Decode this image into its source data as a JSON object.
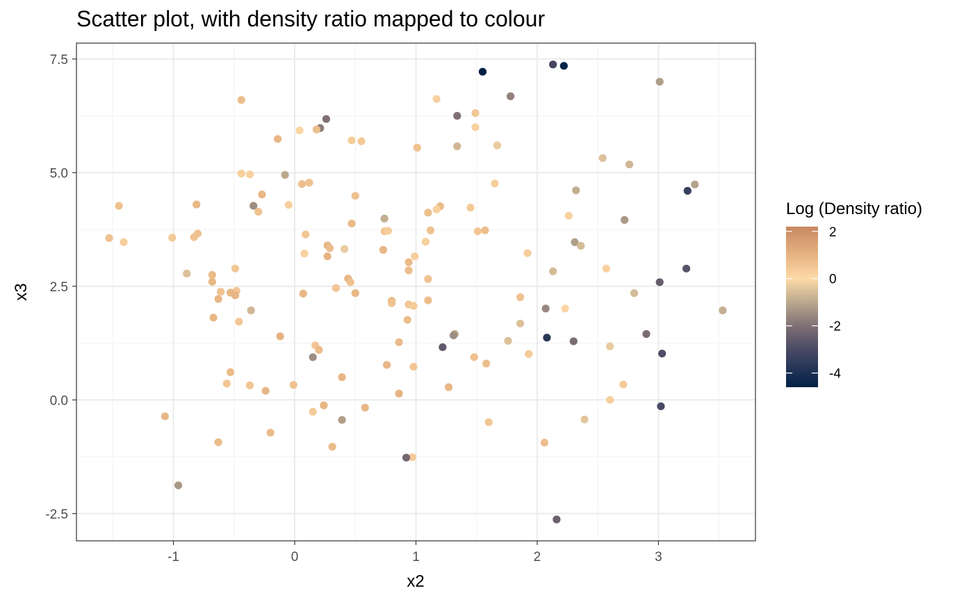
{
  "chart_data": {
    "type": "scatter",
    "title": "Scatter plot, with density ratio mapped to colour",
    "xlabel": "x2",
    "ylabel": "x3",
    "xlim": [
      -1.8,
      3.8
    ],
    "ylim": [
      -3.1,
      7.85
    ],
    "x_ticks": [
      -1,
      0,
      1,
      2,
      3
    ],
    "x_tick_labels": [
      "-1",
      "0",
      "1",
      "2",
      "3"
    ],
    "y_ticks": [
      -2.5,
      0,
      2.5,
      5,
      7.5
    ],
    "y_tick_labels": [
      "-2.5",
      "0.0",
      "2.5",
      "5.0",
      "7.5"
    ],
    "grid": true,
    "legend": {
      "title": "Log (Density ratio)",
      "placement": "right",
      "range": [
        -4.6,
        2.2
      ],
      "ticks": [
        2,
        0,
        -2,
        -4
      ],
      "tick_labels": [
        "2",
        "0",
        "-2",
        "-4"
      ],
      "gradient": [
        {
          "value": -4.6,
          "color": "#002147"
        },
        {
          "value": -3.0,
          "color": "#4a4a66"
        },
        {
          "value": -2.0,
          "color": "#807074"
        },
        {
          "value": -1.0,
          "color": "#bba98e"
        },
        {
          "value": 0.0,
          "color": "#fdd9a6"
        },
        {
          "value": 1.0,
          "color": "#e6b382"
        },
        {
          "value": 2.2,
          "color": "#c88860"
        }
      ]
    },
    "points": [
      {
        "x": 1.55,
        "y": 7.22,
        "c": -4.6
      },
      {
        "x": 2.13,
        "y": 7.38,
        "c": -3.1
      },
      {
        "x": 2.22,
        "y": 7.35,
        "c": -4.5
      },
      {
        "x": 3.01,
        "y": 7.0,
        "c": -1.2
      },
      {
        "x": 1.78,
        "y": 6.68,
        "c": -1.7
      },
      {
        "x": -0.44,
        "y": 6.6,
        "c": 0.7
      },
      {
        "x": 1.17,
        "y": 6.62,
        "c": 0.2
      },
      {
        "x": 1.49,
        "y": 6.31,
        "c": 0.5
      },
      {
        "x": 1.34,
        "y": 6.25,
        "c": -2.0
      },
      {
        "x": 0.26,
        "y": 6.18,
        "c": -2.0
      },
      {
        "x": 0.21,
        "y": 5.98,
        "c": -1.8
      },
      {
        "x": 0.04,
        "y": 5.93,
        "c": 0.1
      },
      {
        "x": 0.18,
        "y": 5.95,
        "c": 0.7
      },
      {
        "x": 1.49,
        "y": 6.0,
        "c": 0.2
      },
      {
        "x": -0.14,
        "y": 5.74,
        "c": 0.9
      },
      {
        "x": 0.47,
        "y": 5.71,
        "c": 0.3
      },
      {
        "x": 0.55,
        "y": 5.69,
        "c": 0.4
      },
      {
        "x": 1.67,
        "y": 5.6,
        "c": -0.3
      },
      {
        "x": 1.34,
        "y": 5.58,
        "c": -0.7
      },
      {
        "x": 1.01,
        "y": 5.55,
        "c": 0.6
      },
      {
        "x": 2.54,
        "y": 5.32,
        "c": -0.5
      },
      {
        "x": 2.76,
        "y": 5.18,
        "c": -0.7
      },
      {
        "x": -0.44,
        "y": 4.98,
        "c": 0.3
      },
      {
        "x": -0.37,
        "y": 4.96,
        "c": 0.2
      },
      {
        "x": -0.08,
        "y": 4.95,
        "c": -1.0
      },
      {
        "x": 0.06,
        "y": 4.75,
        "c": 0.7
      },
      {
        "x": 0.12,
        "y": 4.78,
        "c": 0.6
      },
      {
        "x": 1.65,
        "y": 4.76,
        "c": 0.3
      },
      {
        "x": 3.3,
        "y": 4.74,
        "c": -1.1
      },
      {
        "x": 2.32,
        "y": 4.61,
        "c": -0.9
      },
      {
        "x": 3.24,
        "y": 4.6,
        "c": -3.4
      },
      {
        "x": -0.27,
        "y": 4.52,
        "c": 0.9
      },
      {
        "x": 0.5,
        "y": 4.49,
        "c": 0.6
      },
      {
        "x": -1.45,
        "y": 4.27,
        "c": 0.6
      },
      {
        "x": -0.81,
        "y": 4.3,
        "c": 0.9
      },
      {
        "x": -0.05,
        "y": 4.29,
        "c": 0.2
      },
      {
        "x": -0.34,
        "y": 4.27,
        "c": -1.5
      },
      {
        "x": 1.2,
        "y": 4.26,
        "c": 0.8
      },
      {
        "x": 1.45,
        "y": 4.23,
        "c": 0.4
      },
      {
        "x": 1.17,
        "y": 4.19,
        "c": 0.2
      },
      {
        "x": 1.1,
        "y": 4.12,
        "c": 0.7
      },
      {
        "x": -0.3,
        "y": 4.14,
        "c": 0.6
      },
      {
        "x": 2.26,
        "y": 4.05,
        "c": 0.2
      },
      {
        "x": 0.74,
        "y": 3.99,
        "c": -0.9
      },
      {
        "x": 2.72,
        "y": 3.96,
        "c": -1.3
      },
      {
        "x": 0.47,
        "y": 3.88,
        "c": 0.8
      },
      {
        "x": -0.8,
        "y": 3.66,
        "c": 0.6
      },
      {
        "x": 0.09,
        "y": 3.64,
        "c": 0.5
      },
      {
        "x": 0.74,
        "y": 3.71,
        "c": 0.5
      },
      {
        "x": 0.77,
        "y": 3.72,
        "c": 0.3
      },
      {
        "x": 1.12,
        "y": 3.73,
        "c": 0.6
      },
      {
        "x": 1.51,
        "y": 3.71,
        "c": 0.5
      },
      {
        "x": 1.57,
        "y": 3.73,
        "c": 0.7
      },
      {
        "x": -1.53,
        "y": 3.56,
        "c": 0.6
      },
      {
        "x": -1.41,
        "y": 3.47,
        "c": 0.3
      },
      {
        "x": -1.01,
        "y": 3.57,
        "c": 0.4
      },
      {
        "x": -0.83,
        "y": 3.58,
        "c": 0.6
      },
      {
        "x": 2.31,
        "y": 3.47,
        "c": -1.2
      },
      {
        "x": 1.08,
        "y": 3.48,
        "c": 0.2
      },
      {
        "x": 2.36,
        "y": 3.39,
        "c": -0.6
      },
      {
        "x": 0.27,
        "y": 3.4,
        "c": 0.9
      },
      {
        "x": 0.29,
        "y": 3.34,
        "c": 0.7
      },
      {
        "x": 0.41,
        "y": 3.32,
        "c": -0.3
      },
      {
        "x": 0.73,
        "y": 3.3,
        "c": 0.9
      },
      {
        "x": 0.27,
        "y": 3.16,
        "c": 1.0
      },
      {
        "x": 0.99,
        "y": 3.16,
        "c": 0.3
      },
      {
        "x": 0.08,
        "y": 3.22,
        "c": 0.2
      },
      {
        "x": 1.92,
        "y": 3.23,
        "c": 0.3
      },
      {
        "x": 0.94,
        "y": 3.03,
        "c": 0.8
      },
      {
        "x": 2.57,
        "y": 2.89,
        "c": 0.2
      },
      {
        "x": -0.49,
        "y": 2.89,
        "c": 0.5
      },
      {
        "x": 0.94,
        "y": 2.85,
        "c": 0.7
      },
      {
        "x": 2.13,
        "y": 2.83,
        "c": -0.6
      },
      {
        "x": 3.23,
        "y": 2.89,
        "c": -2.8
      },
      {
        "x": -0.89,
        "y": 2.78,
        "c": -0.5
      },
      {
        "x": -0.68,
        "y": 2.75,
        "c": 0.8
      },
      {
        "x": 0.44,
        "y": 2.67,
        "c": 0.9
      },
      {
        "x": 1.1,
        "y": 2.66,
        "c": 0.6
      },
      {
        "x": -0.68,
        "y": 2.6,
        "c": 0.9
      },
      {
        "x": 0.46,
        "y": 2.59,
        "c": 0.6
      },
      {
        "x": 3.01,
        "y": 2.59,
        "c": -2.5
      },
      {
        "x": 0.34,
        "y": 2.46,
        "c": 0.5
      },
      {
        "x": -0.61,
        "y": 2.38,
        "c": 0.6
      },
      {
        "x": -0.48,
        "y": 2.4,
        "c": 0.5
      },
      {
        "x": -0.53,
        "y": 2.36,
        "c": 0.9
      },
      {
        "x": -0.49,
        "y": 2.3,
        "c": 0.9
      },
      {
        "x": 0.07,
        "y": 2.34,
        "c": 0.9
      },
      {
        "x": 0.5,
        "y": 2.35,
        "c": 0.9
      },
      {
        "x": 2.8,
        "y": 2.35,
        "c": -0.6
      },
      {
        "x": 1.86,
        "y": 2.26,
        "c": 0.6
      },
      {
        "x": -0.63,
        "y": 2.22,
        "c": 0.9
      },
      {
        "x": 0.8,
        "y": 2.18,
        "c": 0.8
      },
      {
        "x": 0.8,
        "y": 2.13,
        "c": 0.6
      },
      {
        "x": 0.94,
        "y": 2.1,
        "c": 0.5
      },
      {
        "x": 0.98,
        "y": 2.07,
        "c": 0.4
      },
      {
        "x": 1.1,
        "y": 2.19,
        "c": 0.7
      },
      {
        "x": 2.07,
        "y": 2.01,
        "c": -1.6
      },
      {
        "x": 2.23,
        "y": 2.01,
        "c": 0.1
      },
      {
        "x": -0.36,
        "y": 1.97,
        "c": -0.7
      },
      {
        "x": 3.53,
        "y": 1.97,
        "c": -0.9
      },
      {
        "x": -0.67,
        "y": 1.81,
        "c": 0.9
      },
      {
        "x": 0.93,
        "y": 1.76,
        "c": 0.7
      },
      {
        "x": -0.46,
        "y": 1.72,
        "c": 0.5
      },
      {
        "x": 1.86,
        "y": 1.68,
        "c": -0.5
      },
      {
        "x": 1.32,
        "y": 1.45,
        "c": -1.0
      },
      {
        "x": 1.31,
        "y": 1.42,
        "c": -1.5
      },
      {
        "x": 2.9,
        "y": 1.45,
        "c": -2.1
      },
      {
        "x": -0.12,
        "y": 1.4,
        "c": 1.0
      },
      {
        "x": 2.08,
        "y": 1.37,
        "c": -3.7
      },
      {
        "x": 1.76,
        "y": 1.3,
        "c": -0.5
      },
      {
        "x": 2.3,
        "y": 1.29,
        "c": -2.1
      },
      {
        "x": 0.86,
        "y": 1.27,
        "c": 0.8
      },
      {
        "x": 0.17,
        "y": 1.2,
        "c": 0.5
      },
      {
        "x": 2.6,
        "y": 1.18,
        "c": -0.3
      },
      {
        "x": 1.22,
        "y": 1.16,
        "c": -2.6
      },
      {
        "x": 0.2,
        "y": 1.1,
        "c": 0.8
      },
      {
        "x": 3.03,
        "y": 1.02,
        "c": -2.9
      },
      {
        "x": 1.93,
        "y": 1.01,
        "c": 0.4
      },
      {
        "x": 0.15,
        "y": 0.94,
        "c": -1.5
      },
      {
        "x": 1.48,
        "y": 0.94,
        "c": 0.6
      },
      {
        "x": 1.58,
        "y": 0.8,
        "c": 0.7
      },
      {
        "x": 0.76,
        "y": 0.77,
        "c": 0.9
      },
      {
        "x": 0.98,
        "y": 0.73,
        "c": 0.5
      },
      {
        "x": -0.53,
        "y": 0.61,
        "c": 0.8
      },
      {
        "x": 0.39,
        "y": 0.5,
        "c": 0.9
      },
      {
        "x": -0.56,
        "y": 0.36,
        "c": 0.5
      },
      {
        "x": -0.01,
        "y": 0.33,
        "c": 0.6
      },
      {
        "x": -0.37,
        "y": 0.32,
        "c": 0.5
      },
      {
        "x": 2.71,
        "y": 0.34,
        "c": 0.4
      },
      {
        "x": 1.27,
        "y": 0.28,
        "c": 0.9
      },
      {
        "x": -0.24,
        "y": 0.2,
        "c": 0.9
      },
      {
        "x": 0.86,
        "y": 0.14,
        "c": 1.0
      },
      {
        "x": 2.6,
        "y": 0.0,
        "c": 0.3
      },
      {
        "x": 0.24,
        "y": -0.12,
        "c": 0.9
      },
      {
        "x": 0.58,
        "y": -0.17,
        "c": 0.9
      },
      {
        "x": 3.02,
        "y": -0.14,
        "c": -3.0
      },
      {
        "x": 0.15,
        "y": -0.26,
        "c": 0.4
      },
      {
        "x": -1.07,
        "y": -0.36,
        "c": 0.9
      },
      {
        "x": 0.39,
        "y": -0.44,
        "c": -1.2
      },
      {
        "x": 2.39,
        "y": -0.43,
        "c": -0.4
      },
      {
        "x": 1.6,
        "y": -0.49,
        "c": 0.5
      },
      {
        "x": -0.2,
        "y": -0.72,
        "c": 0.8
      },
      {
        "x": -0.63,
        "y": -0.93,
        "c": 0.8
      },
      {
        "x": 2.06,
        "y": -0.94,
        "c": 0.7
      },
      {
        "x": 0.31,
        "y": -1.03,
        "c": 0.8
      },
      {
        "x": 0.97,
        "y": -1.26,
        "c": 0.4
      },
      {
        "x": 0.92,
        "y": -1.27,
        "c": -2.2
      },
      {
        "x": -0.96,
        "y": -1.88,
        "c": -1.3
      },
      {
        "x": 2.16,
        "y": -2.63,
        "c": -2.4
      }
    ]
  }
}
